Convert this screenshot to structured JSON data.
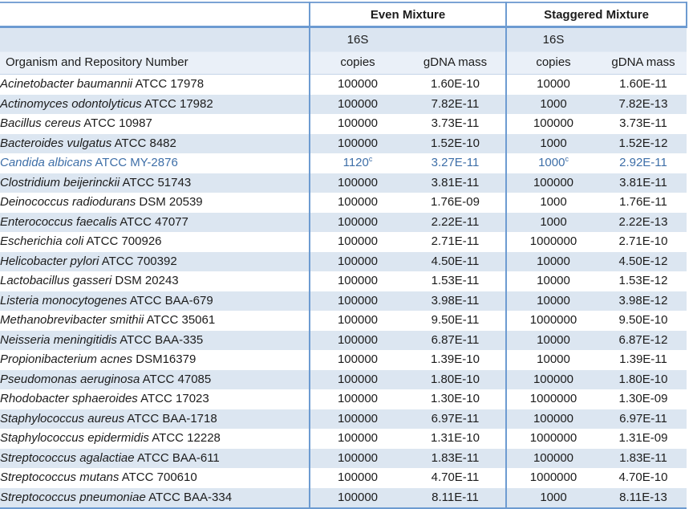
{
  "table": {
    "headers": {
      "even_mixture": "Even Mixture",
      "staggered_mixture": "Staggered Mixture",
      "organism": "Organism and Repository Number",
      "copies_line1": "16S",
      "copies_line2": "copies",
      "gdna_mass": "gDNA mass"
    },
    "rows": [
      {
        "genus_species": "Acinetobacter baumannii",
        "repository": "ATCC 17978",
        "even_copies": "100000",
        "even_copies_sup": "",
        "even_mass": "1.60E-10",
        "stag_copies": "10000",
        "stag_copies_sup": "",
        "stag_mass": "1.60E-11",
        "highlight": false
      },
      {
        "genus_species": "Actinomyces odontolyticus",
        "repository": "ATCC 17982",
        "even_copies": "100000",
        "even_copies_sup": "",
        "even_mass": "7.82E-11",
        "stag_copies": "1000",
        "stag_copies_sup": "",
        "stag_mass": "7.82E-13",
        "highlight": false
      },
      {
        "genus_species": "Bacillus cereus",
        "repository": "ATCC 10987",
        "even_copies": "100000",
        "even_copies_sup": "",
        "even_mass": "3.73E-11",
        "stag_copies": "100000",
        "stag_copies_sup": "",
        "stag_mass": "3.73E-11",
        "highlight": false
      },
      {
        "genus_species": "Bacteroides vulgatus",
        "repository": "ATCC 8482",
        "even_copies": "100000",
        "even_copies_sup": "",
        "even_mass": "1.52E-10",
        "stag_copies": "1000",
        "stag_copies_sup": "",
        "stag_mass": "1.52E-12",
        "highlight": false
      },
      {
        "genus_species": "Candida albicans",
        "repository": "ATCC MY-2876",
        "even_copies": "1120",
        "even_copies_sup": "c",
        "even_mass": "3.27E-11",
        "stag_copies": "1000",
        "stag_copies_sup": "c",
        "stag_mass": "2.92E-11",
        "highlight": true
      },
      {
        "genus_species": "Clostridium beijerinckii",
        "repository": "ATCC 51743",
        "even_copies": "100000",
        "even_copies_sup": "",
        "even_mass": "3.81E-11",
        "stag_copies": "100000",
        "stag_copies_sup": "",
        "stag_mass": "3.81E-11",
        "highlight": false
      },
      {
        "genus_species": "Deinococcus radiodurans",
        "repository": "DSM 20539",
        "even_copies": "100000",
        "even_copies_sup": "",
        "even_mass": "1.76E-09",
        "stag_copies": "1000",
        "stag_copies_sup": "",
        "stag_mass": "1.76E-11",
        "highlight": false
      },
      {
        "genus_species": "Enterococcus faecalis",
        "repository": "ATCC 47077",
        "even_copies": "100000",
        "even_copies_sup": "",
        "even_mass": "2.22E-11",
        "stag_copies": "1000",
        "stag_copies_sup": "",
        "stag_mass": "2.22E-13",
        "highlight": false
      },
      {
        "genus_species": "Escherichia coli",
        "repository": "ATCC 700926",
        "even_copies": "100000",
        "even_copies_sup": "",
        "even_mass": "2.71E-11",
        "stag_copies": "1000000",
        "stag_copies_sup": "",
        "stag_mass": "2.71E-10",
        "highlight": false
      },
      {
        "genus_species": "Helicobacter pylori",
        "repository": "ATCC 700392",
        "even_copies": "100000",
        "even_copies_sup": "",
        "even_mass": "4.50E-11",
        "stag_copies": "10000",
        "stag_copies_sup": "",
        "stag_mass": "4.50E-12",
        "highlight": false
      },
      {
        "genus_species": "Lactobacillus gasseri",
        "repository": "DSM 20243",
        "even_copies": "100000",
        "even_copies_sup": "",
        "even_mass": "1.53E-11",
        "stag_copies": "10000",
        "stag_copies_sup": "",
        "stag_mass": "1.53E-12",
        "highlight": false
      },
      {
        "genus_species": "Listeria monocytogenes",
        "repository": "ATCC BAA-679",
        "even_copies": "100000",
        "even_copies_sup": "",
        "even_mass": "3.98E-11",
        "stag_copies": "10000",
        "stag_copies_sup": "",
        "stag_mass": "3.98E-12",
        "highlight": false
      },
      {
        "genus_species": "Methanobrevibacter smithii",
        "repository": "ATCC 35061",
        "even_copies": "100000",
        "even_copies_sup": "",
        "even_mass": "9.50E-11",
        "stag_copies": "1000000",
        "stag_copies_sup": "",
        "stag_mass": "9.50E-10",
        "highlight": false
      },
      {
        "genus_species": "Neisseria meningitidis",
        "repository": "ATCC BAA-335",
        "even_copies": "100000",
        "even_copies_sup": "",
        "even_mass": "6.87E-11",
        "stag_copies": "10000",
        "stag_copies_sup": "",
        "stag_mass": "6.87E-12",
        "highlight": false
      },
      {
        "genus_species": "Propionibacterium acnes",
        "repository": "DSM16379",
        "even_copies": "100000",
        "even_copies_sup": "",
        "even_mass": "1.39E-10",
        "stag_copies": "10000",
        "stag_copies_sup": "",
        "stag_mass": "1.39E-11",
        "highlight": false
      },
      {
        "genus_species": "Pseudomonas aeruginosa",
        "repository": "ATCC 47085",
        "even_copies": "100000",
        "even_copies_sup": "",
        "even_mass": "1.80E-10",
        "stag_copies": "100000",
        "stag_copies_sup": "",
        "stag_mass": "1.80E-10",
        "highlight": false
      },
      {
        "genus_species": "Rhodobacter sphaeroides",
        "repository": "ATCC 17023",
        "even_copies": "100000",
        "even_copies_sup": "",
        "even_mass": "1.30E-10",
        "stag_copies": "1000000",
        "stag_copies_sup": "",
        "stag_mass": "1.30E-09",
        "highlight": false
      },
      {
        "genus_species": "Staphylococcus aureus",
        "repository": "ATCC BAA-1718",
        "even_copies": "100000",
        "even_copies_sup": "",
        "even_mass": "6.97E-11",
        "stag_copies": "100000",
        "stag_copies_sup": "",
        "stag_mass": "6.97E-11",
        "highlight": false
      },
      {
        "genus_species": "Staphylococcus epidermidis",
        "repository": "ATCC 12228",
        "even_copies": "100000",
        "even_copies_sup": "",
        "even_mass": "1.31E-10",
        "stag_copies": "1000000",
        "stag_copies_sup": "",
        "stag_mass": "1.31E-09",
        "highlight": false
      },
      {
        "genus_species": "Streptococcus agalactiae",
        "repository": "ATCC BAA-611",
        "even_copies": "100000",
        "even_copies_sup": "",
        "even_mass": "1.83E-11",
        "stag_copies": "100000",
        "stag_copies_sup": "",
        "stag_mass": "1.83E-11",
        "highlight": false
      },
      {
        "genus_species": "Streptococcus mutans",
        "repository": "ATCC 700610",
        "even_copies": "100000",
        "even_copies_sup": "",
        "even_mass": "4.70E-11",
        "stag_copies": "1000000",
        "stag_copies_sup": "",
        "stag_mass": "4.70E-10",
        "highlight": false
      },
      {
        "genus_species": "Streptococcus pneumoniae",
        "repository": "ATCC BAA-334",
        "even_copies": "100000",
        "even_copies_sup": "",
        "even_mass": "8.11E-11",
        "stag_copies": "1000",
        "stag_copies_sup": "",
        "stag_mass": "8.11E-13",
        "highlight": false
      }
    ]
  },
  "colors": {
    "band_blue": "#dce6f1",
    "band_light": "#eaf0f8",
    "border_blue": "#6d9bd1",
    "highlight_text": "#3e6fa8"
  }
}
